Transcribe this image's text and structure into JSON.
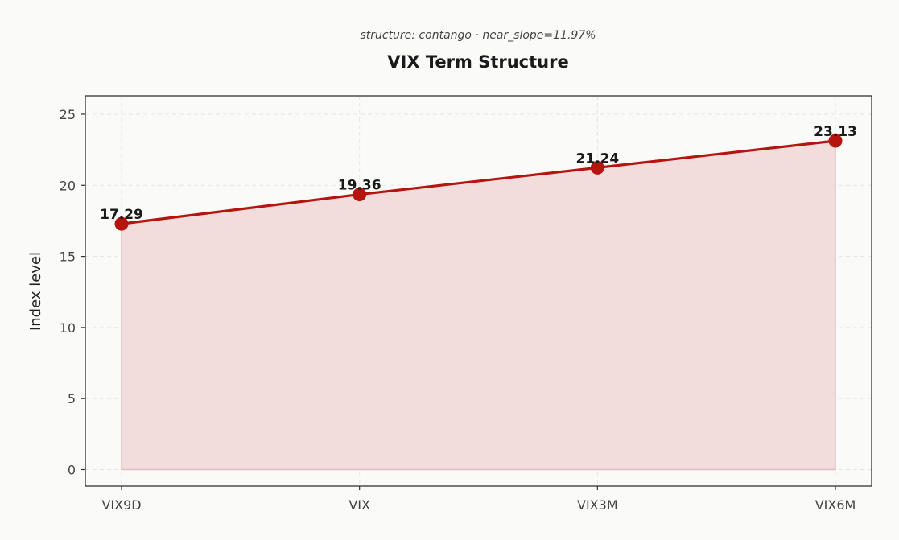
{
  "chart_data": {
    "type": "area",
    "title": "VIX Term Structure",
    "subtitle": "structure: contango · near_slope=11.97%",
    "xlabel": "",
    "ylabel": "Index level",
    "categories": [
      "VIX9D",
      "VIX",
      "VIX3M",
      "VIX6M"
    ],
    "series": [
      {
        "values": [
          17.29,
          19.36,
          21.24,
          23.13
        ],
        "labels": [
          "17.29",
          "19.36",
          "21.24",
          "23.13"
        ]
      }
    ],
    "ylim": [
      -1.16,
      26.3
    ],
    "yticks": [
      "0",
      "5",
      "10",
      "15",
      "20",
      "25"
    ],
    "grid": true,
    "line_color": "#b5140f",
    "fill_color": "#f2dddc",
    "background": "#fafaf9"
  }
}
